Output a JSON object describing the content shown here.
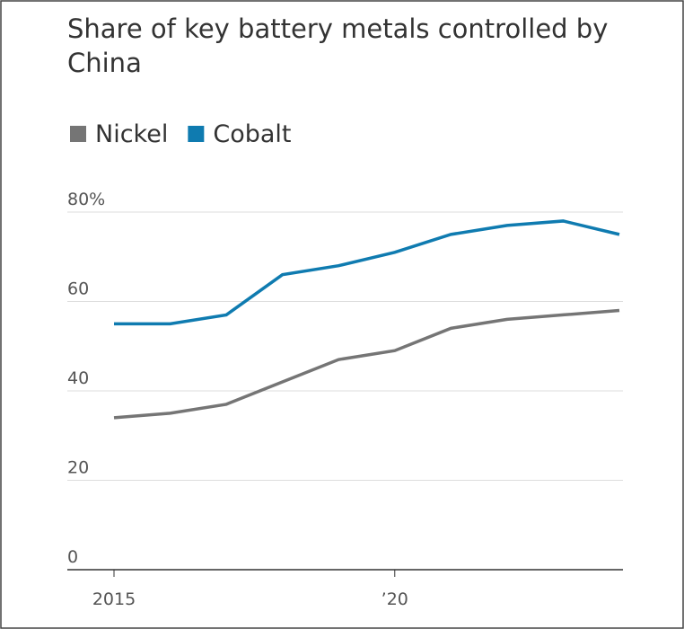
{
  "chart_data": {
    "type": "line",
    "title": "Share of key battery metals controlled by China",
    "x": [
      2015,
      2016,
      2017,
      2018,
      2019,
      2020,
      2021,
      2022,
      2023,
      2024
    ],
    "series": [
      {
        "name": "Nickel",
        "color": "#757575",
        "values": [
          34,
          35,
          37,
          42,
          47,
          49,
          54,
          56,
          57,
          58
        ]
      },
      {
        "name": "Cobalt",
        "color": "#0f7bb0",
        "values": [
          55,
          55,
          57,
          66,
          68,
          71,
          75,
          77,
          78,
          75
        ]
      }
    ],
    "xlim": [
      2015,
      2024
    ],
    "xticks": [
      2015,
      {
        "value": 2020,
        "label": "’20"
      }
    ],
    "ylim": [
      0,
      80
    ],
    "yticks": [
      0,
      20,
      40,
      60,
      {
        "value": 80,
        "label": "80%"
      }
    ],
    "grid": true
  }
}
